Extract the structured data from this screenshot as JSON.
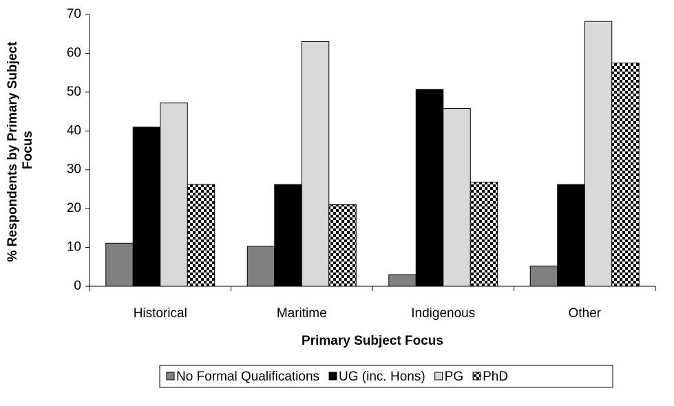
{
  "chart_data": {
    "type": "bar",
    "y_label_lines": [
      "% Respondents by Primary Subject",
      "Focus"
    ],
    "x_label": "Primary Subject Focus",
    "categories": [
      "Historical",
      "Maritime",
      "Indigenous",
      "Other"
    ],
    "series": [
      {
        "name": "No Formal Qualifications",
        "color": "#808080",
        "values": [
          11.1,
          10.3,
          3,
          5.2
        ]
      },
      {
        "name": "UG (inc. Hons)",
        "color": "#000000",
        "values": [
          41,
          26.2,
          50.7,
          26.2
        ]
      },
      {
        "name": "PG",
        "color": "#d9d9d9",
        "values": [
          47.2,
          63,
          45.8,
          68.2
        ]
      },
      {
        "name": "PhD",
        "color": "#000000",
        "pattern": "checker",
        "values": [
          26.2,
          21,
          26.8,
          57.5
        ]
      }
    ],
    "ylim": [
      0,
      70
    ],
    "yticks": [
      0,
      10,
      20,
      30,
      40,
      50,
      60,
      70
    ],
    "grid": false,
    "legend": "bottom"
  }
}
